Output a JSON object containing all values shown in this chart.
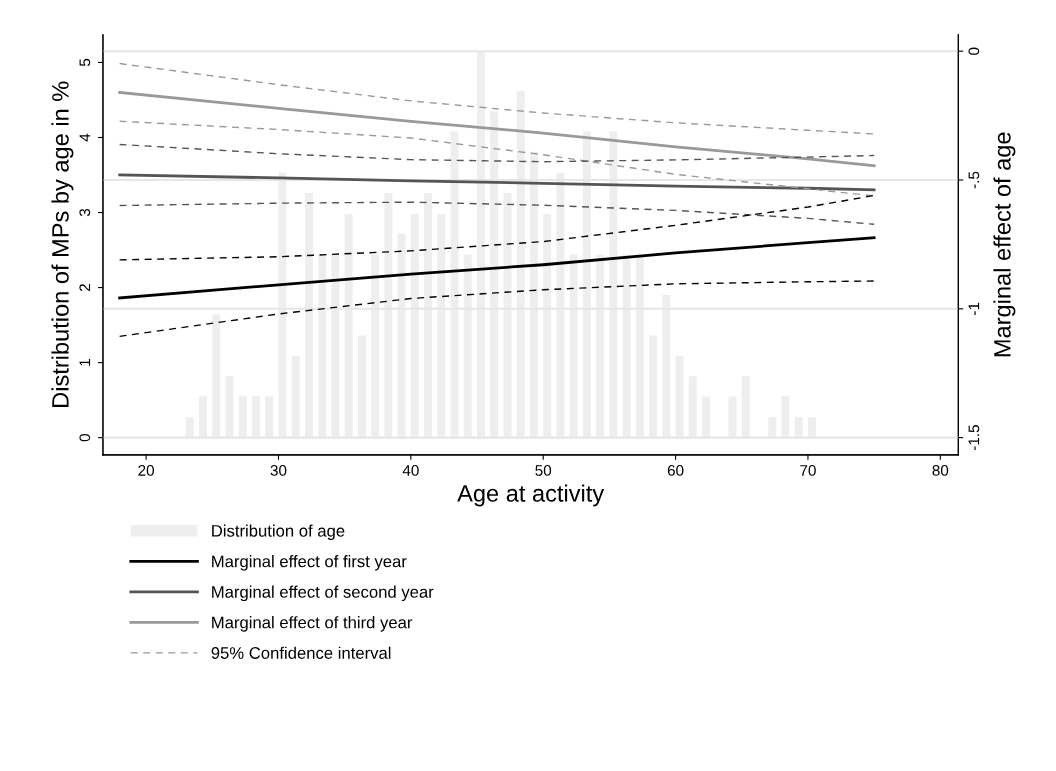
{
  "chart_data": {
    "type": "bar",
    "xlabel": "Age at activity",
    "ylabel": "Distribution of MPs by age in %",
    "y2label": "Marginal effect of age",
    "xlim": [
      16.74,
      81.36
    ],
    "xticks": [
      20,
      30,
      40,
      50,
      60,
      70,
      80
    ],
    "ylim": [
      -0.23,
      5.37
    ],
    "yticks": [
      0,
      1,
      2,
      3,
      4,
      5
    ],
    "y2lim": [
      -1.567,
      0.064
    ],
    "y2ticks": [
      0,
      {
        "value": -0.5,
        "label": "-.5"
      },
      -1,
      -1.5
    ],
    "grid": "y2",
    "legend": "bottom",
    "series": [
      {
        "name": "Distribution of age",
        "color": "#eeeeee",
        "x": [
          23,
          24,
          25,
          26,
          27,
          28,
          29,
          30,
          31,
          32,
          33,
          34,
          35,
          36,
          37,
          38,
          39,
          40,
          41,
          42,
          43,
          44,
          45,
          46,
          47,
          48,
          49,
          50,
          51,
          52,
          53,
          54,
          55,
          56,
          57,
          58,
          59,
          60,
          61,
          62,
          64,
          65,
          67,
          68,
          69,
          70
        ],
        "values": [
          0.27,
          0.55,
          1.64,
          0.82,
          0.55,
          0.55,
          0.55,
          3.53,
          1.09,
          3.26,
          2.44,
          2.44,
          2.98,
          1.36,
          2.44,
          3.26,
          2.72,
          2.98,
          3.26,
          2.98,
          4.08,
          2.44,
          5.15,
          4.35,
          3.26,
          4.62,
          3.81,
          2.98,
          3.53,
          2.44,
          4.08,
          2.44,
          4.08,
          2.44,
          2.44,
          1.36,
          1.9,
          1.09,
          0.82,
          0.55,
          0.55,
          0.82,
          0.27,
          0.55,
          0.27,
          0.27
        ]
      },
      {
        "type": "line",
        "axis": "y2",
        "name": "Marginal effect of first year",
        "color": "#000000",
        "line_style": "solid",
        "x": [
          18,
          30,
          40,
          50,
          60,
          70,
          75
        ],
        "values": [
          -0.958,
          -0.907,
          -0.865,
          -0.829,
          -0.783,
          -0.743,
          -0.724
        ]
      },
      {
        "type": "line",
        "axis": "y2",
        "name": "Marginal effect of second year",
        "color": "#555555",
        "line_style": "solid",
        "x": [
          18,
          30,
          40,
          50,
          60,
          70,
          75
        ],
        "values": [
          -0.48,
          -0.492,
          -0.503,
          -0.513,
          -0.524,
          -0.532,
          -0.538
        ]
      },
      {
        "type": "line",
        "axis": "y2",
        "name": "Marginal effect of third year",
        "color": "#999999",
        "line_style": "solid",
        "x": [
          18,
          30,
          40,
          50,
          60,
          70,
          75
        ],
        "values": [
          -0.16,
          -0.222,
          -0.272,
          -0.318,
          -0.371,
          -0.418,
          -0.445
        ]
      },
      {
        "type": "line",
        "axis": "y2",
        "name": "95% Confidence interval",
        "color": "#999999",
        "line_style": "dashed",
        "x": [
          18,
          30,
          40,
          50,
          60,
          70,
          75
        ],
        "values": [
          -0.048,
          -0.13,
          -0.193,
          -0.24,
          -0.278,
          -0.307,
          -0.321
        ]
      },
      {
        "type": "line",
        "axis": "y2",
        "color": "#999999",
        "line_style": "dashed",
        "x": [
          18,
          30,
          40,
          50,
          60,
          70,
          75
        ],
        "values": [
          -0.272,
          -0.304,
          -0.337,
          -0.402,
          -0.478,
          -0.534,
          -0.562
        ]
      },
      {
        "type": "line",
        "axis": "y2",
        "color": "#555555",
        "line_style": "dashed",
        "x": [
          18,
          30,
          40,
          50,
          60,
          70,
          75
        ],
        "values": [
          -0.362,
          -0.398,
          -0.421,
          -0.429,
          -0.422,
          -0.411,
          -0.405
        ]
      },
      {
        "type": "line",
        "axis": "y2",
        "color": "#555555",
        "line_style": "dashed",
        "x": [
          18,
          30,
          40,
          50,
          60,
          70,
          75
        ],
        "values": [
          -0.599,
          -0.59,
          -0.586,
          -0.598,
          -0.618,
          -0.649,
          -0.672
        ]
      },
      {
        "type": "line",
        "axis": "y2",
        "color": "#000000",
        "line_style": "dashed",
        "x": [
          18,
          30,
          40,
          50,
          60,
          70,
          75
        ],
        "values": [
          -0.81,
          -0.798,
          -0.775,
          -0.739,
          -0.676,
          -0.605,
          -0.56
        ]
      },
      {
        "type": "line",
        "axis": "y2",
        "color": "#000000",
        "line_style": "dashed",
        "x": [
          18,
          30,
          40,
          50,
          60,
          70,
          75
        ],
        "values": [
          -1.107,
          -1.02,
          -0.96,
          -0.926,
          -0.903,
          -0.895,
          -0.892
        ]
      }
    ]
  }
}
